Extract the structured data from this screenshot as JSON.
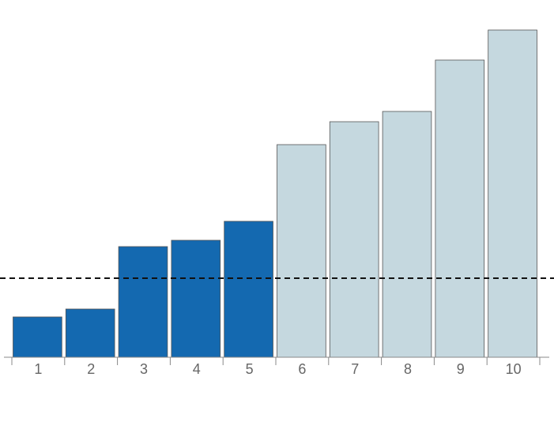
{
  "chart_data": {
    "type": "bar",
    "categories": [
      "1",
      "2",
      "3",
      "4",
      "5",
      "6",
      "7",
      "8",
      "9",
      "10"
    ],
    "values": [
      51,
      61,
      140,
      148,
      172,
      269,
      298,
      311,
      376,
      414
    ],
    "colors": [
      "#1469b0",
      "#1469b0",
      "#1469b0",
      "#1469b0",
      "#1469b0",
      "#c5d8df",
      "#c5d8df",
      "#c5d8df",
      "#c5d8df",
      "#c5d8df"
    ],
    "ylim": [
      0,
      452
    ],
    "reference_line": 100
  }
}
